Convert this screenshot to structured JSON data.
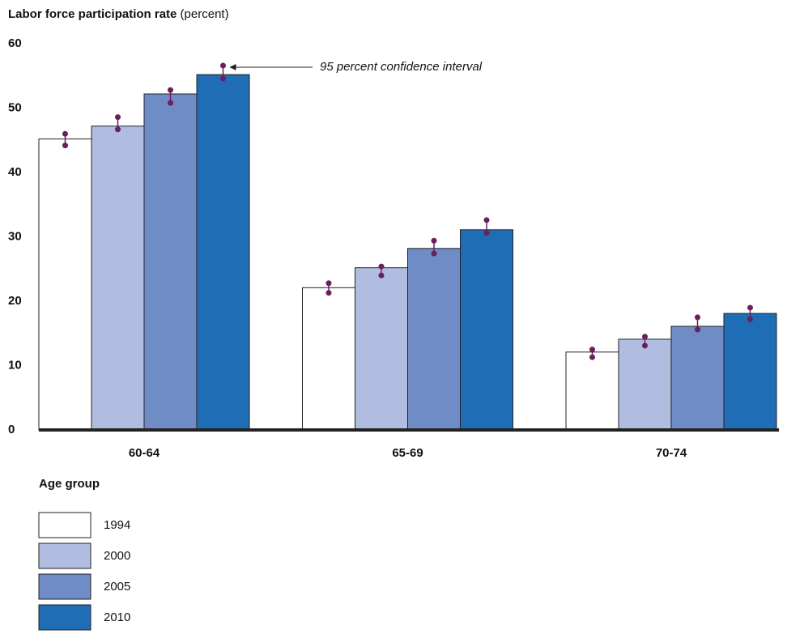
{
  "chart_data": {
    "type": "bar",
    "title": "Labor force participation rate",
    "title_unit": "(percent)",
    "x_label": "Age group",
    "annotation": "95 percent confidence interval",
    "categories": [
      "60-64",
      "65-69",
      "70-74"
    ],
    "series": [
      {
        "name": "1994",
        "color": "#ffffff",
        "values": [
          45.2,
          22.1,
          12.1
        ],
        "ci_low": [
          44.2,
          21.3,
          11.3
        ],
        "ci_high": [
          46.0,
          22.8,
          12.5
        ]
      },
      {
        "name": "2000",
        "color": "#b0bde0",
        "values": [
          47.2,
          25.2,
          14.1
        ],
        "ci_low": [
          46.7,
          24.0,
          13.1
        ],
        "ci_high": [
          48.6,
          25.4,
          14.5
        ]
      },
      {
        "name": "2005",
        "color": "#6f8cc7",
        "values": [
          52.2,
          28.2,
          16.1
        ],
        "ci_low": [
          50.8,
          27.4,
          15.6
        ],
        "ci_high": [
          52.8,
          29.4,
          17.5
        ]
      },
      {
        "name": "2010",
        "color": "#1f6db5",
        "values": [
          55.2,
          31.1,
          18.1
        ],
        "ci_low": [
          54.6,
          30.6,
          17.2
        ],
        "ci_high": [
          56.6,
          32.6,
          19.0
        ]
      }
    ],
    "error_color": "#6b1f5c",
    "ylim": [
      0,
      60
    ],
    "yticks": [
      0,
      10,
      20,
      30,
      40,
      50,
      60
    ],
    "grid": false
  }
}
